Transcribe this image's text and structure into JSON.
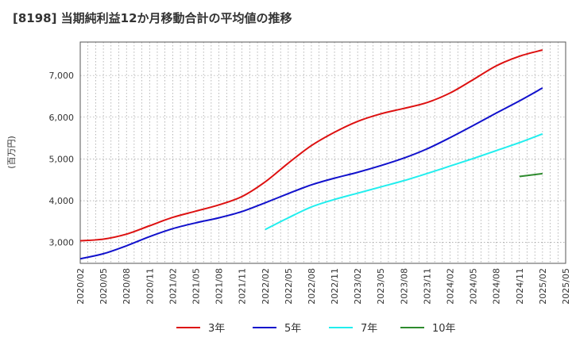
{
  "chart_data": {
    "type": "line",
    "title": "[8198]  当期純利益12か月移動合計の平均値の推移",
    "ylabel": "(百万円)",
    "xlabel": "",
    "x_tick_labels": [
      "2020/02",
      "2020/05",
      "2020/08",
      "2020/11",
      "2021/02",
      "2021/05",
      "2021/08",
      "2021/11",
      "2022/02",
      "2022/05",
      "2022/08",
      "2022/11",
      "2023/02",
      "2023/05",
      "2023/08",
      "2023/11",
      "2024/02",
      "2024/05",
      "2024/08",
      "2024/11",
      "2025/02",
      "2025/05"
    ],
    "y_ticks": [
      3000,
      4000,
      5000,
      6000,
      7000
    ],
    "y_tick_labels": [
      "3,000",
      "4,000",
      "5,000",
      "6,000",
      "7,000"
    ],
    "ylim": [
      2500,
      7800
    ],
    "xlim": [
      "2020/02",
      "2025/05"
    ],
    "grid": true,
    "legend_position": "bottom",
    "series": [
      {
        "name": "3年",
        "color": "#dd1111",
        "points": [
          [
            "2020/02",
            3040
          ],
          [
            "2020/05",
            3080
          ],
          [
            "2020/08",
            3200
          ],
          [
            "2020/11",
            3400
          ],
          [
            "2021/02",
            3600
          ],
          [
            "2021/05",
            3750
          ],
          [
            "2021/08",
            3900
          ],
          [
            "2021/11",
            4100
          ],
          [
            "2022/02",
            4450
          ],
          [
            "2022/05",
            4900
          ],
          [
            "2022/08",
            5320
          ],
          [
            "2022/11",
            5640
          ],
          [
            "2023/02",
            5900
          ],
          [
            "2023/05",
            6080
          ],
          [
            "2023/08",
            6210
          ],
          [
            "2023/11",
            6350
          ],
          [
            "2024/02",
            6580
          ],
          [
            "2024/05",
            6900
          ],
          [
            "2024/08",
            7230
          ],
          [
            "2024/11",
            7460
          ],
          [
            "2025/02",
            7610
          ]
        ]
      },
      {
        "name": "5年",
        "color": "#1111cc",
        "points": [
          [
            "2020/02",
            2610
          ],
          [
            "2020/05",
            2730
          ],
          [
            "2020/08",
            2920
          ],
          [
            "2020/11",
            3140
          ],
          [
            "2021/02",
            3330
          ],
          [
            "2021/05",
            3470
          ],
          [
            "2021/08",
            3590
          ],
          [
            "2021/11",
            3740
          ],
          [
            "2022/02",
            3950
          ],
          [
            "2022/05",
            4170
          ],
          [
            "2022/08",
            4380
          ],
          [
            "2022/11",
            4540
          ],
          [
            "2023/02",
            4680
          ],
          [
            "2023/05",
            4840
          ],
          [
            "2023/08",
            5020
          ],
          [
            "2023/11",
            5240
          ],
          [
            "2024/02",
            5510
          ],
          [
            "2024/05",
            5800
          ],
          [
            "2024/08",
            6100
          ],
          [
            "2024/11",
            6390
          ],
          [
            "2025/02",
            6700
          ]
        ]
      },
      {
        "name": "7年",
        "color": "#22eeee",
        "points": [
          [
            "2022/02",
            3310
          ],
          [
            "2022/05",
            3590
          ],
          [
            "2022/08",
            3850
          ],
          [
            "2022/11",
            4030
          ],
          [
            "2023/02",
            4180
          ],
          [
            "2023/05",
            4330
          ],
          [
            "2023/08",
            4480
          ],
          [
            "2023/11",
            4650
          ],
          [
            "2024/02",
            4830
          ],
          [
            "2024/05",
            5010
          ],
          [
            "2024/08",
            5200
          ],
          [
            "2024/11",
            5390
          ],
          [
            "2025/02",
            5600
          ]
        ]
      },
      {
        "name": "10年",
        "color": "#2e8b2e",
        "points": [
          [
            "2024/11",
            4580
          ],
          [
            "2025/02",
            4650
          ]
        ]
      }
    ]
  }
}
